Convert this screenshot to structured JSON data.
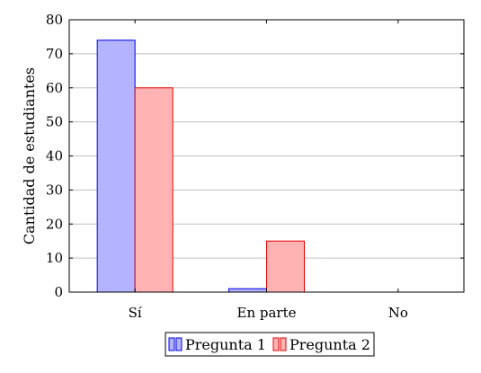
{
  "chart_data": {
    "type": "bar",
    "categories": [
      "Sí",
      "En parte",
      "No"
    ],
    "series": [
      {
        "name": "Pregunta 1",
        "values": [
          74,
          1,
          0
        ],
        "color": "#b3b3ff",
        "stroke": "#0000e6"
      },
      {
        "name": "Pregunta 2",
        "values": [
          60,
          15,
          0
        ],
        "color": "#ffb3b3",
        "stroke": "#e60000"
      }
    ],
    "ylabel": "Cantidad de estudiantes",
    "xlabel": "",
    "ylim": [
      0,
      80
    ],
    "yticks": [
      0,
      10,
      20,
      30,
      40,
      50,
      60,
      70,
      80
    ],
    "grid": true,
    "legend_position": "bottom-center"
  }
}
